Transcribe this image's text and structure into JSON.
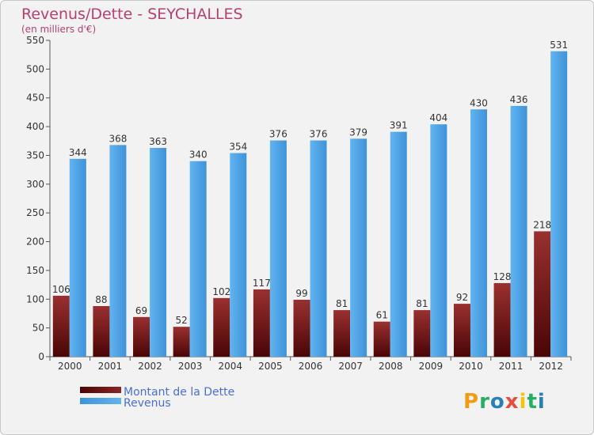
{
  "chart_data": {
    "type": "bar",
    "title": "Revenus/Dette - SEYCHALLES",
    "subtitle": "(en milliers d'€)",
    "categories": [
      "2000",
      "2001",
      "2002",
      "2003",
      "2004",
      "2005",
      "2006",
      "2007",
      "2008",
      "2009",
      "2010",
      "2011",
      "2012"
    ],
    "series": [
      {
        "name": "Montant de la Dette",
        "values": [
          106,
          88,
          69,
          52,
          102,
          117,
          99,
          81,
          61,
          81,
          92,
          128,
          218
        ],
        "color": "#7a1a1a"
      },
      {
        "name": "Revenus",
        "values": [
          344,
          368,
          363,
          340,
          354,
          376,
          376,
          379,
          391,
          404,
          430,
          436,
          531
        ],
        "color": "#4aa3e6"
      }
    ],
    "ylim": [
      0,
      550
    ],
    "yticks": [
      0,
      50,
      100,
      150,
      200,
      250,
      300,
      350,
      400,
      450,
      500,
      550
    ],
    "grid": false,
    "legend": "bottom-left"
  },
  "logo": {
    "text": "Proxiti"
  }
}
